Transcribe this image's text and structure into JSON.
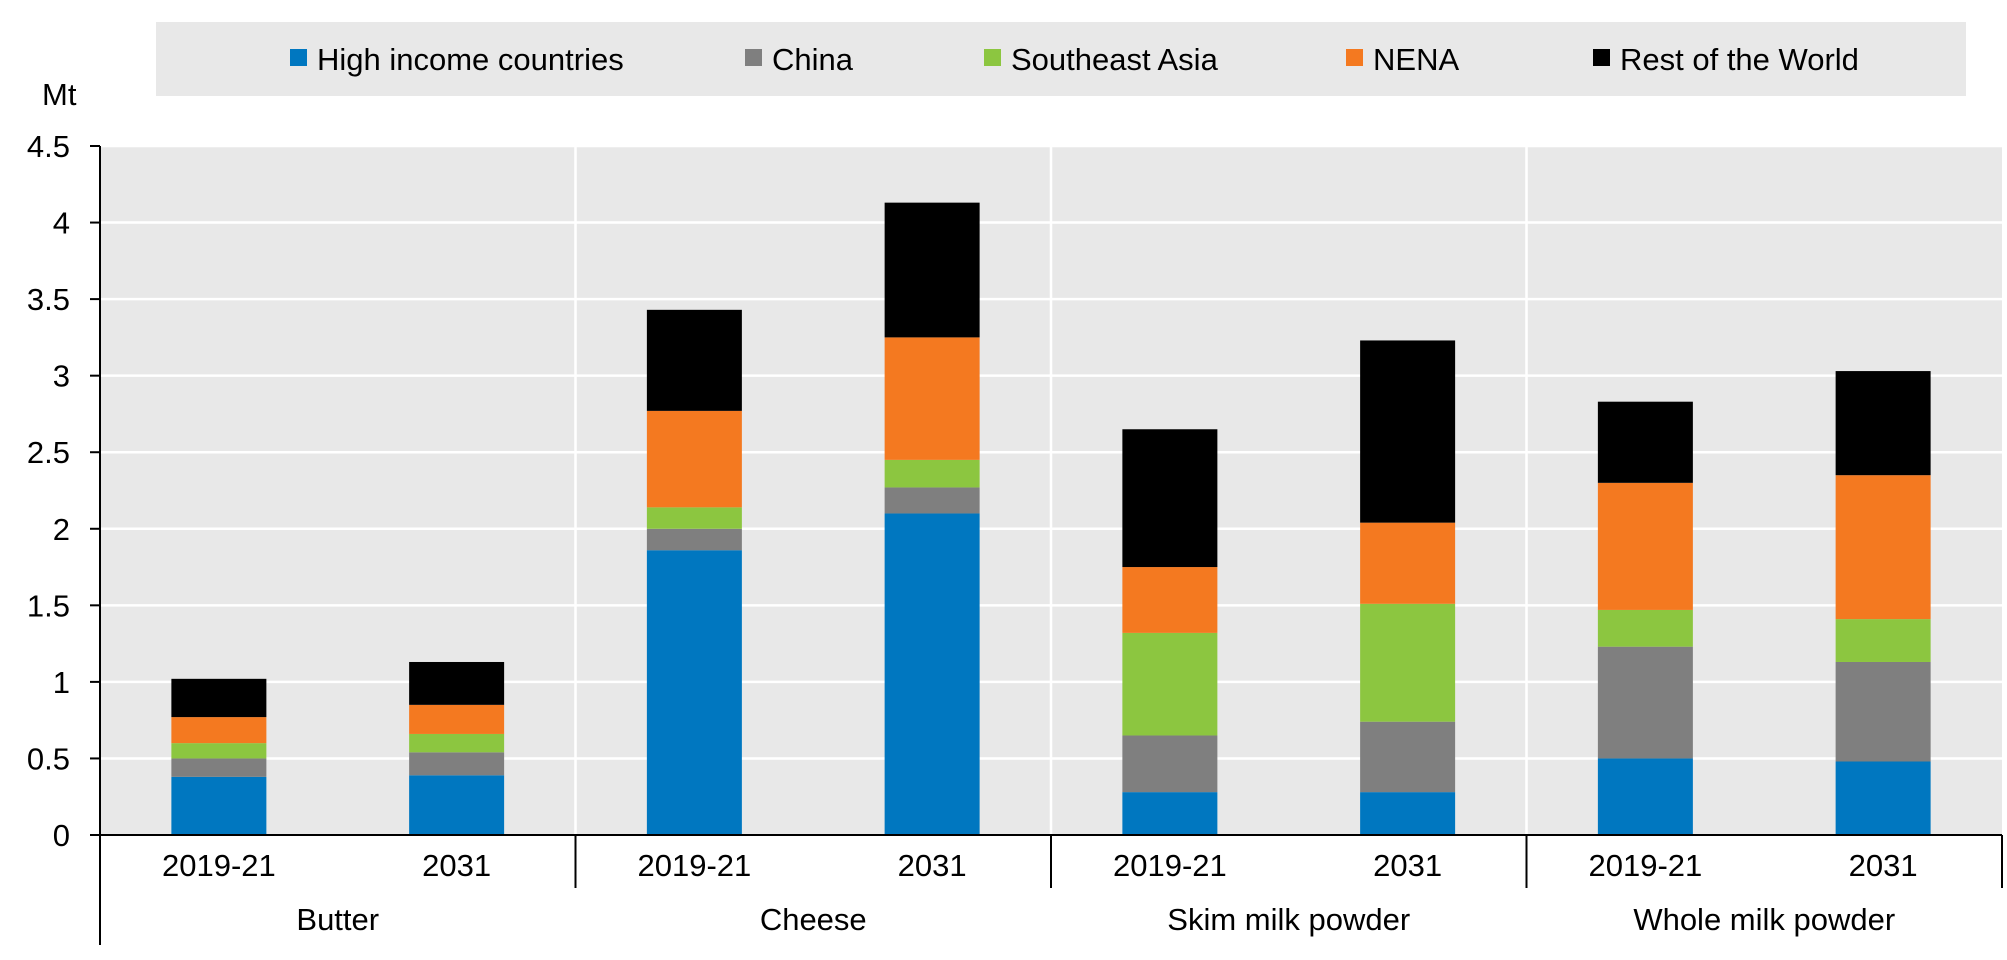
{
  "chart_data": {
    "type": "bar",
    "stacked": true,
    "ylabel": "Mt",
    "ylim": [
      0,
      4.5
    ],
    "yticks": [
      "0",
      "0.5",
      "1",
      "1.5",
      "2",
      "2.5",
      "3",
      "3.5",
      "4",
      "4.5"
    ],
    "groups": [
      {
        "label": "Butter",
        "categories": [
          "2019-21",
          "2031"
        ]
      },
      {
        "label": "Cheese",
        "categories": [
          "2019-21",
          "2031"
        ]
      },
      {
        "label": "Skim milk powder",
        "categories": [
          "2019-21",
          "2031"
        ]
      },
      {
        "label": "Whole milk powder",
        "categories": [
          "2019-21",
          "2031"
        ]
      }
    ],
    "series": [
      {
        "name": "High income countries",
        "color": "#0077c0",
        "values": [
          0.38,
          0.39,
          1.86,
          2.1,
          0.28,
          0.28,
          0.5,
          0.48
        ]
      },
      {
        "name": "China",
        "color": "#7f7f7f",
        "values": [
          0.12,
          0.15,
          0.14,
          0.17,
          0.37,
          0.46,
          0.73,
          0.65
        ]
      },
      {
        "name": "Southeast Asia",
        "color": "#8cc640",
        "values": [
          0.1,
          0.12,
          0.14,
          0.18,
          0.67,
          0.77,
          0.24,
          0.28
        ]
      },
      {
        "name": "NENA",
        "color": "#f47920",
        "values": [
          0.17,
          0.19,
          0.63,
          0.8,
          0.43,
          0.53,
          0.83,
          0.94
        ]
      },
      {
        "name": "Rest of the World",
        "color": "#000000",
        "values": [
          0.25,
          0.28,
          0.66,
          0.88,
          0.9,
          1.19,
          0.53,
          0.68
        ]
      }
    ],
    "legend_position": "top",
    "grid": true,
    "plot_background": "#e8e8e8"
  }
}
